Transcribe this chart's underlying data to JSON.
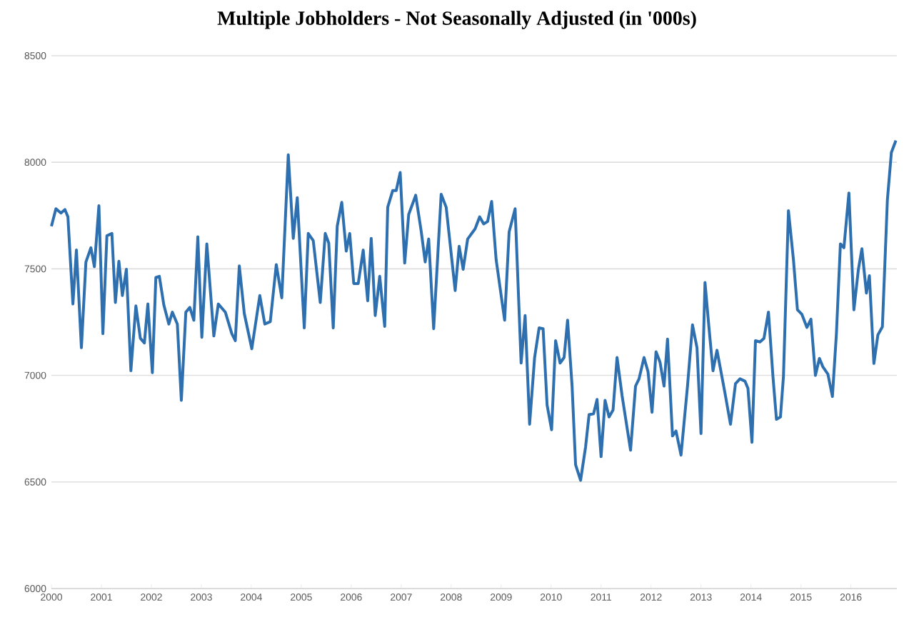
{
  "chart_data": {
    "type": "line",
    "title": "Multiple Jobholders - Not Seasonally Adjusted (in '000s)",
    "x": [
      2000.0,
      2000.09,
      2000.19,
      2000.27,
      2000.33,
      2000.43,
      2000.5,
      2000.6,
      2000.69,
      2000.79,
      2000.86,
      2000.95,
      2001.03,
      2001.11,
      2001.21,
      2001.28,
      2001.35,
      2001.42,
      2001.5,
      2001.59,
      2001.69,
      2001.78,
      2001.86,
      2001.93,
      2002.02,
      2002.09,
      2002.16,
      2002.25,
      2002.35,
      2002.42,
      2002.52,
      2002.6,
      2002.69,
      2002.77,
      2002.85,
      2002.93,
      2003.01,
      2003.11,
      2003.25,
      2003.34,
      2003.48,
      2003.61,
      2003.68,
      2003.76,
      2003.86,
      2004.01,
      2004.17,
      2004.27,
      2004.38,
      2004.5,
      2004.61,
      2004.74,
      2004.84,
      2004.92,
      2005.06,
      2005.14,
      2005.24,
      2005.38,
      2005.48,
      2005.55,
      2005.64,
      2005.72,
      2005.81,
      2005.9,
      2005.97,
      2006.05,
      2006.14,
      2006.24,
      2006.33,
      2006.4,
      2006.48,
      2006.57,
      2006.67,
      2006.73,
      2006.83,
      2006.9,
      2006.98,
      2007.07,
      2007.15,
      2007.29,
      2007.4,
      2007.48,
      2007.55,
      2007.65,
      2007.8,
      2007.9,
      2008.08,
      2008.16,
      2008.24,
      2008.33,
      2008.48,
      2008.57,
      2008.65,
      2008.73,
      2008.81,
      2008.9,
      2009.07,
      2009.16,
      2009.28,
      2009.4,
      2009.48,
      2009.57,
      2009.67,
      2009.76,
      2009.84,
      2009.92,
      2010.01,
      2010.09,
      2010.18,
      2010.26,
      2010.33,
      2010.42,
      2010.49,
      2010.59,
      2010.69,
      2010.76,
      2010.85,
      2010.92,
      2011.0,
      2011.08,
      2011.16,
      2011.24,
      2011.32,
      2011.42,
      2011.59,
      2011.69,
      2011.76,
      2011.86,
      2011.94,
      2012.02,
      2012.1,
      2012.18,
      2012.26,
      2012.33,
      2012.43,
      2012.5,
      2012.6,
      2012.73,
      2012.83,
      2012.92,
      2013.0,
      2013.08,
      2013.16,
      2013.24,
      2013.32,
      2013.48,
      2013.59,
      2013.69,
      2013.78,
      2013.88,
      2013.94,
      2014.02,
      2014.09,
      2014.18,
      2014.26,
      2014.35,
      2014.44,
      2014.51,
      2014.59,
      2014.65,
      2014.75,
      2014.85,
      2014.93,
      2015.02,
      2015.12,
      2015.2,
      2015.29,
      2015.37,
      2015.44,
      2015.54,
      2015.63,
      2015.71,
      2015.79,
      2015.86,
      2015.96,
      2016.06,
      2016.15,
      2016.22,
      2016.31,
      2016.37,
      2016.46,
      2016.54,
      2016.63,
      2016.73,
      2016.81,
      2016.9
    ],
    "values": [
      7700,
      7782,
      7762,
      7778,
      7744,
      7335,
      7588,
      7130,
      7532,
      7599,
      7510,
      7796,
      7196,
      7655,
      7666,
      7342,
      7536,
      7375,
      7498,
      7022,
      7326,
      7174,
      7152,
      7335,
      7013,
      7460,
      7465,
      7330,
      7241,
      7297,
      7241,
      6883,
      7297,
      7319,
      7259,
      7650,
      7179,
      7617,
      7185,
      7335,
      7297,
      7196,
      7163,
      7514,
      7290,
      7125,
      7375,
      7241,
      7252,
      7520,
      7364,
      8035,
      7643,
      7834,
      7223,
      7666,
      7632,
      7342,
      7666,
      7621,
      7223,
      7700,
      7812,
      7583,
      7666,
      7431,
      7431,
      7588,
      7350,
      7643,
      7281,
      7465,
      7230,
      7789,
      7867,
      7867,
      7952,
      7527,
      7755,
      7845,
      7677,
      7532,
      7640,
      7219,
      7850,
      7789,
      7398,
      7606,
      7498,
      7640,
      7688,
      7744,
      7711,
      7722,
      7816,
      7543,
      7259,
      7673,
      7782,
      7058,
      7281,
      6771,
      7084,
      7223,
      7219,
      6861,
      6745,
      7163,
      7058,
      7084,
      7259,
      6950,
      6581,
      6508,
      6664,
      6816,
      6820,
      6887,
      6619,
      6883,
      6805,
      6838,
      7084,
      6906,
      6649,
      6950,
      6984,
      7084,
      7017,
      6827,
      7111,
      7062,
      6950,
      7170,
      6716,
      6739,
      6626,
      6950,
      7237,
      7130,
      6727,
      7436,
      7223,
      7022,
      7118,
      6917,
      6771,
      6961,
      6984,
      6973,
      6939,
      6686,
      7163,
      7157,
      7174,
      7297,
      6995,
      6794,
      6805,
      6995,
      7773,
      7543,
      7308,
      7286,
      7225,
      7264,
      7000,
      7080,
      7040,
      7006,
      6901,
      7196,
      7617,
      7599,
      7856,
      7308,
      7498,
      7594,
      7386,
      7468,
      7056,
      7190,
      7228,
      7823,
      8046,
      8102
    ],
    "color": "#2e6fb0",
    "xlim": [
      2000,
      2016.92
    ],
    "xticks": [
      2000,
      2001,
      2002,
      2003,
      2004,
      2005,
      2006,
      2007,
      2008,
      2009,
      2010,
      2011,
      2012,
      2013,
      2014,
      2015,
      2016
    ],
    "ylim": [
      6000,
      8500
    ],
    "yticks": [
      6000,
      6500,
      7000,
      7500,
      8000,
      8500
    ],
    "grid": "y"
  }
}
